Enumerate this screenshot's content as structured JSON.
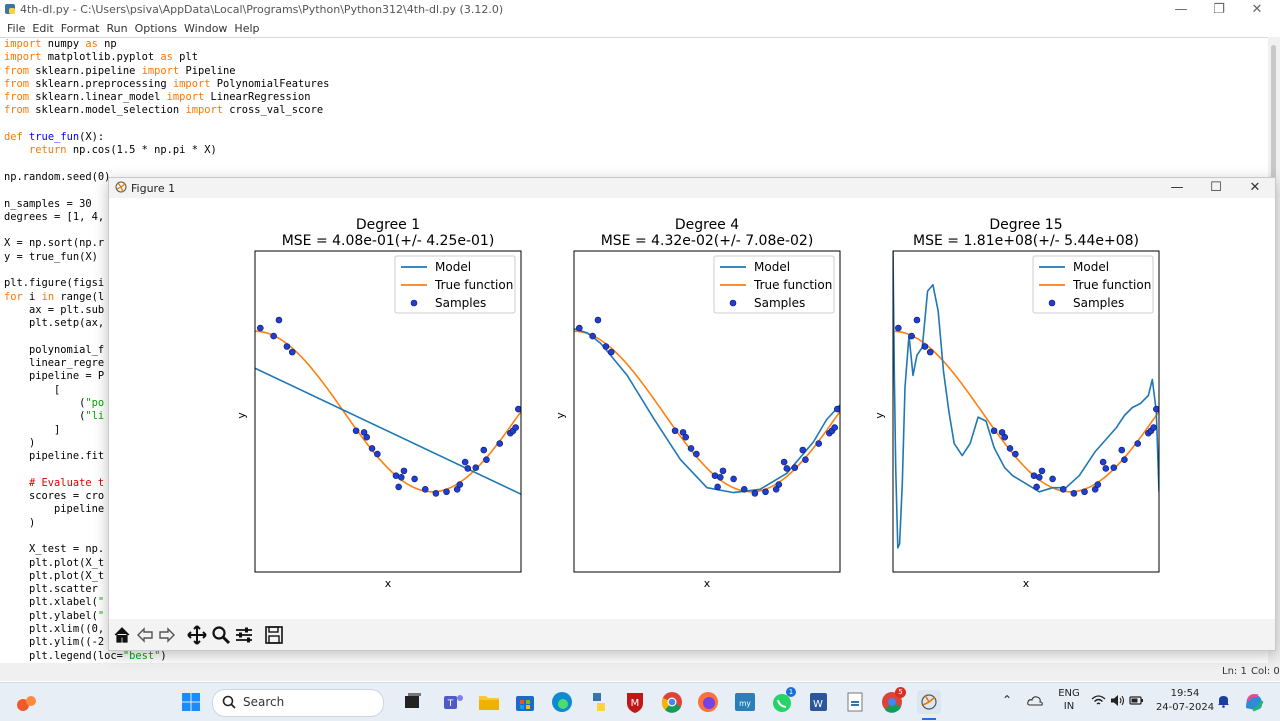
{
  "idle": {
    "title": "4th-dl.py - C:\\Users\\psiva\\AppData\\Local\\Programs\\Python\\Python312\\4th-dl.py (3.12.0)",
    "menu": [
      "File",
      "Edit",
      "Format",
      "Run",
      "Options",
      "Window",
      "Help"
    ],
    "status_line": "Ln: 1",
    "status_col": "Col: 0",
    "code_top": [
      [
        [
          "kw",
          "import"
        ],
        [
          "t",
          " numpy "
        ],
        [
          "kw",
          "as"
        ],
        [
          "t",
          " np"
        ]
      ],
      [
        [
          "kw",
          "import"
        ],
        [
          "t",
          " matplotlib.pyplot "
        ],
        [
          "kw",
          "as"
        ],
        [
          "t",
          " plt"
        ]
      ],
      [
        [
          "kw",
          "from"
        ],
        [
          "t",
          " sklearn.pipeline "
        ],
        [
          "kw",
          "import"
        ],
        [
          "t",
          " Pipeline"
        ]
      ],
      [
        [
          "kw",
          "from"
        ],
        [
          "t",
          " sklearn.preprocessing "
        ],
        [
          "kw",
          "import"
        ],
        [
          "t",
          " PolynomialFeatures"
        ]
      ],
      [
        [
          "kw",
          "from"
        ],
        [
          "t",
          " sklearn.linear_model "
        ],
        [
          "kw",
          "import"
        ],
        [
          "t",
          " LinearRegression"
        ]
      ],
      [
        [
          "kw",
          "from"
        ],
        [
          "t",
          " sklearn.model_selection "
        ],
        [
          "kw",
          "import"
        ],
        [
          "t",
          " cross_val_score"
        ]
      ],
      [],
      [
        [
          "kw",
          "def"
        ],
        [
          "t",
          " "
        ],
        [
          "fn",
          "true_fun"
        ],
        [
          "t",
          "(X):"
        ]
      ],
      [
        [
          "t",
          "    "
        ],
        [
          "kw",
          "return"
        ],
        [
          "t",
          " np.cos(1.5 * np.pi * X)"
        ]
      ],
      [],
      [
        [
          "t",
          "np.random.seed(0)"
        ]
      ],
      [],
      [
        [
          "t",
          "n_samples = 30"
        ]
      ],
      [
        [
          "t",
          "degrees = [1, 4,"
        ]
      ],
      [],
      [
        [
          "t",
          "X = np.sort(np.r"
        ]
      ],
      [
        [
          "t",
          "y = true_fun(X)"
        ]
      ],
      [],
      [
        [
          "t",
          "plt.figure(figsi"
        ]
      ],
      [
        [
          "kw",
          "for"
        ],
        [
          "t",
          " i "
        ],
        [
          "kw",
          "in"
        ],
        [
          "t",
          " range(l"
        ]
      ],
      [
        [
          "t",
          "    ax = plt.sub"
        ]
      ],
      [
        [
          "t",
          "    plt.setp(ax,"
        ]
      ],
      [],
      [
        [
          "t",
          "    polynomial_f"
        ]
      ],
      [
        [
          "t",
          "    linear_regre"
        ]
      ],
      [
        [
          "t",
          "    pipeline = P"
        ]
      ],
      [
        [
          "t",
          "        ["
        ]
      ],
      [
        [
          "t",
          "            ("
        ],
        [
          "str",
          "\"po"
        ]
      ],
      [
        [
          "t",
          "            ("
        ],
        [
          "str",
          "\"li"
        ]
      ],
      [
        [
          "t",
          "        ]"
        ]
      ],
      [
        [
          "t",
          "    )"
        ]
      ],
      [
        [
          "t",
          "    pipeline.fit"
        ]
      ],
      [],
      [
        [
          "t",
          "    "
        ],
        [
          "cm",
          "# Evaluate t"
        ]
      ],
      [
        [
          "t",
          "    scores = cro"
        ]
      ],
      [
        [
          "t",
          "        pipeline"
        ]
      ],
      [
        [
          "t",
          "    )"
        ]
      ],
      [],
      [
        [
          "t",
          "    X_test = np."
        ]
      ],
      [
        [
          "t",
          "    plt.plot(X_t"
        ]
      ],
      [
        [
          "t",
          "    plt.plot(X_t"
        ]
      ],
      [
        [
          "t",
          "    plt.scatter"
        ]
      ],
      [
        [
          "t",
          "    plt.xlabel("
        ],
        [
          "str",
          "\""
        ]
      ],
      [
        [
          "t",
          "    plt.ylabel("
        ],
        [
          "str",
          "\""
        ]
      ],
      [
        [
          "t",
          "    plt.xlim((0,"
        ]
      ],
      [
        [
          "t",
          "    plt.ylim((-2"
        ]
      ],
      [
        [
          "t",
          "    plt.legend(loc="
        ],
        [
          "str",
          "\"best\""
        ],
        [
          "t",
          ")"
        ]
      ]
    ]
  },
  "figure": {
    "title": "Figure 1",
    "toolbar": [
      "home-icon",
      "back-icon",
      "forward-icon",
      "pan-icon",
      "zoom-icon",
      "configure-icon",
      "save-icon"
    ]
  },
  "colors": {
    "model": "#1f77b4",
    "true": "#ff7f0e",
    "samples": "#1f3fd0"
  },
  "chart_data": [
    {
      "type": "line",
      "title": "Degree 1",
      "subtitle": "MSE = 4.08e-01(+/- 4.25e-01)",
      "xlabel": "x",
      "ylabel": "y",
      "xlim": [
        0,
        1
      ],
      "ylim": [
        -2,
        2
      ],
      "legend": [
        "Model",
        "True function",
        "Samples"
      ],
      "legend_position": "top-right",
      "model": {
        "x": [
          0,
          1
        ],
        "y": [
          0.54,
          -1.03
        ]
      }
    },
    {
      "type": "line",
      "title": "Degree 4",
      "subtitle": "MSE = 4.32e-02(+/- 7.08e-02)",
      "xlabel": "x",
      "ylabel": "y",
      "xlim": [
        0,
        1
      ],
      "ylim": [
        -2,
        2
      ],
      "legend": [
        "Model",
        "True function",
        "Samples"
      ],
      "legend_position": "top-right",
      "model": {
        "x": [
          0,
          0.05,
          0.1,
          0.2,
          0.3,
          0.4,
          0.5,
          0.6,
          0.7,
          0.8,
          0.9,
          0.95,
          1.0
        ],
        "y": [
          1.03,
          0.98,
          0.85,
          0.45,
          -0.09,
          -0.6,
          -0.95,
          -1.01,
          -0.97,
          -0.77,
          -0.38,
          -0.1,
          0.08
        ]
      }
    },
    {
      "type": "line",
      "title": "Degree 15",
      "subtitle": "MSE = 1.81e+08(+/- 5.44e+08)",
      "xlabel": "x",
      "ylabel": "y",
      "xlim": [
        0,
        1
      ],
      "ylim": [
        -2,
        2
      ],
      "legend": [
        "Model",
        "True function",
        "Samples"
      ],
      "legend_position": "top-right",
      "model": {
        "x": [
          0.0,
          0.005,
          0.01,
          0.018,
          0.025,
          0.035,
          0.045,
          0.06,
          0.075,
          0.09,
          0.11,
          0.13,
          0.15,
          0.17,
          0.19,
          0.21,
          0.23,
          0.26,
          0.29,
          0.32,
          0.35,
          0.38,
          0.42,
          0.45,
          0.5,
          0.55,
          0.6,
          0.65,
          0.7,
          0.73,
          0.76,
          0.8,
          0.84,
          0.87,
          0.9,
          0.93,
          0.96,
          0.975,
          0.99,
          1.0
        ],
        "y": [
          2.0,
          0.5,
          -0.7,
          -1.7,
          -1.65,
          -0.9,
          0.3,
          0.95,
          0.45,
          0.7,
          0.8,
          1.5,
          1.58,
          1.25,
          0.5,
          0.0,
          -0.4,
          -0.55,
          -0.4,
          -0.07,
          -0.12,
          -0.45,
          -0.7,
          -0.8,
          -0.9,
          -1.0,
          -0.95,
          -0.95,
          -0.8,
          -0.65,
          -0.5,
          -0.35,
          -0.2,
          -0.05,
          0.05,
          0.1,
          0.2,
          0.4,
          0.0,
          -1.0
        ]
      }
    }
  ],
  "true_function": "cos(1.5πx)",
  "samples": {
    "x": [
      0.02,
      0.07,
      0.09,
      0.12,
      0.14,
      0.38,
      0.41,
      0.42,
      0.44,
      0.46,
      0.53,
      0.54,
      0.55,
      0.56,
      0.6,
      0.64,
      0.68,
      0.72,
      0.76,
      0.77,
      0.79,
      0.8,
      0.83,
      0.86,
      0.87,
      0.92,
      0.96,
      0.97,
      0.98,
      0.99
    ],
    "y": [
      1.04,
      0.94,
      1.14,
      0.81,
      0.74,
      -0.24,
      -0.26,
      -0.32,
      -0.46,
      -0.53,
      -0.8,
      -0.94,
      -0.82,
      -0.74,
      -0.84,
      -0.97,
      -1.02,
      -1.0,
      -0.97,
      -0.91,
      -0.63,
      -0.71,
      -0.7,
      -0.48,
      -0.6,
      -0.4,
      -0.27,
      -0.24,
      -0.2,
      0.03
    ]
  },
  "taskbar": {
    "search_label": "Search",
    "lang": "ENG",
    "region": "IN",
    "time": "19:54",
    "date": "24-07-2024",
    "badges": {
      "whatsapp": "1",
      "chrome": "5"
    }
  }
}
